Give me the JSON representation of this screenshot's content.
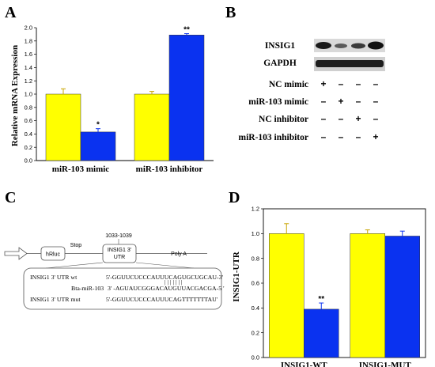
{
  "panels": {
    "a": "A",
    "b": "B",
    "c": "C",
    "d": "D"
  },
  "chart_data": [
    {
      "type": "bar",
      "panel": "A",
      "categories": [
        "miR-103 mimic",
        "miR-103 inhibitor"
      ],
      "series": [
        {
          "color": "#ffff00",
          "values": [
            1.0,
            1.0
          ],
          "errors": [
            0.08,
            0.04
          ],
          "sig": [
            "",
            ""
          ]
        },
        {
          "color": "#0a32f0",
          "values": [
            0.43,
            1.89
          ],
          "errors": [
            0.05,
            0.02
          ],
          "sig": [
            "*",
            "**"
          ]
        }
      ],
      "ylabel": "Relative mRNA Expression",
      "ylim": [
        0,
        2.0
      ],
      "yticks": [
        "0.0",
        "0.2",
        "0.4",
        "0.6",
        "0.8",
        "1.0",
        "1.2",
        "1.4",
        "1.6",
        "1.8",
        "2.0"
      ]
    },
    {
      "type": "bar",
      "panel": "D",
      "categories": [
        "INSIG1-WT",
        "INSIG1-MUT"
      ],
      "series": [
        {
          "color": "#ffff00",
          "values": [
            1.0,
            1.0
          ],
          "errors": [
            0.08,
            0.03
          ],
          "sig": [
            "",
            ""
          ]
        },
        {
          "color": "#0a32f0",
          "values": [
            0.39,
            0.98
          ],
          "errors": [
            0.05,
            0.04
          ],
          "sig": [
            "**",
            ""
          ]
        }
      ],
      "ylabel": "INSIG1-UTR",
      "ylim": [
        0,
        1.2
      ],
      "yticks": [
        "0.0",
        "0.2",
        "0.4",
        "0.6",
        "0.8",
        "1.0",
        "1.2"
      ]
    }
  ],
  "blot": {
    "bands": [
      "INSIG1",
      "GAPDH"
    ],
    "conditions": [
      {
        "label": "NC mimic",
        "signs": [
          "+",
          "–",
          "–",
          "–"
        ]
      },
      {
        "label": "miR-103 mimic",
        "signs": [
          "–",
          "+",
          "–",
          "–"
        ]
      },
      {
        "label": "NC inhibitor",
        "signs": [
          "–",
          "–",
          "+",
          "–"
        ]
      },
      {
        "label": "miR-103 inhibitor",
        "signs": [
          "–",
          "–",
          "–",
          "+"
        ]
      }
    ]
  },
  "construct": {
    "stop": "Stop",
    "site": "1033-1039",
    "luc": "hRluc",
    "utr_line1": "INSIG1 3'",
    "utr_line2": "UTR",
    "polya": "Poly A",
    "seq_wt_label": "INSIG1  3' UTR wt",
    "seq_wt": "5'-GGUUCUCCCAUUUCAGUGCUGCAU-3'",
    "seq_mir_label": "Bta-miR-103",
    "seq_mir": "3' -AGUAUCGGGACAUGUUACGACGA-5 '",
    "seq_mut_label": "INSIG1  3' UTR mut",
    "seq_mut": "5'-GGUUCUCCCAUUUCAGTTTTTTTAU'",
    "pairing": "| | | | | | |"
  }
}
